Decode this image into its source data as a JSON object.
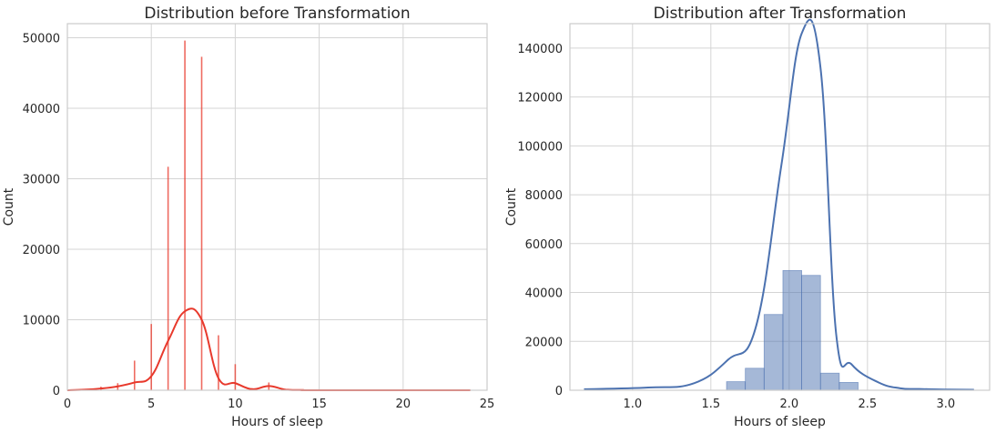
{
  "chart_data": [
    {
      "type": "histogram",
      "title": "Distribution before Transformation",
      "xlabel": "Hours of sleep",
      "ylabel": "Count",
      "xlim": [
        0,
        25
      ],
      "ylim": [
        0,
        52000
      ],
      "xticks": [
        0,
        5,
        10,
        15,
        20,
        25
      ],
      "yticks": [
        0,
        10000,
        20000,
        30000,
        40000,
        50000
      ],
      "grid": true,
      "color": "#e8392c",
      "bins": [
        {
          "x": 1,
          "count": 150
        },
        {
          "x": 2,
          "count": 500
        },
        {
          "x": 3,
          "count": 1000
        },
        {
          "x": 4,
          "count": 4200
        },
        {
          "x": 5,
          "count": 9400
        },
        {
          "x": 6,
          "count": 31700
        },
        {
          "x": 7,
          "count": 49600
        },
        {
          "x": 8,
          "count": 47300
        },
        {
          "x": 9,
          "count": 7800
        },
        {
          "x": 10,
          "count": 3700
        },
        {
          "x": 11,
          "count": 300
        },
        {
          "x": 12,
          "count": 1100
        },
        {
          "x": 13,
          "count": 150
        },
        {
          "x": 14,
          "count": 100
        },
        {
          "x": 16,
          "count": 80
        },
        {
          "x": 18,
          "count": 60
        },
        {
          "x": 20,
          "count": 60
        },
        {
          "x": 24,
          "count": 60
        }
      ],
      "kde": [
        [
          0,
          0
        ],
        [
          1,
          80
        ],
        [
          2,
          250
        ],
        [
          3,
          550
        ],
        [
          4,
          1100
        ],
        [
          5,
          2000
        ],
        [
          6,
          7000
        ],
        [
          7,
          11200
        ],
        [
          8,
          10000
        ],
        [
          9,
          1700
        ],
        [
          10,
          1000
        ],
        [
          11,
          150
        ],
        [
          12,
          600
        ],
        [
          13,
          80
        ],
        [
          14,
          30
        ],
        [
          15,
          0
        ],
        [
          24,
          0
        ]
      ]
    },
    {
      "type": "histogram",
      "title": "Distribution after Transformation",
      "xlabel": "Hours of sleep",
      "ylabel": "Count",
      "xlim": [
        0.6,
        3.28
      ],
      "ylim": [
        0,
        150000
      ],
      "xticks": [
        1.0,
        1.5,
        2.0,
        2.5,
        3.0
      ],
      "xtick_labels": [
        "1.0",
        "1.5",
        "2.0",
        "2.5",
        "3.0"
      ],
      "yticks": [
        0,
        20000,
        40000,
        60000,
        80000,
        100000,
        120000,
        140000
      ],
      "grid": true,
      "color": "#4c72b0",
      "bins": [
        {
          "x0": 1.6,
          "x1": 1.72,
          "count": 3500
        },
        {
          "x0": 1.72,
          "x1": 1.84,
          "count": 9000
        },
        {
          "x0": 1.84,
          "x1": 1.96,
          "count": 31000
        },
        {
          "x0": 1.96,
          "x1": 2.08,
          "count": 49000
        },
        {
          "x0": 2.08,
          "x1": 2.2,
          "count": 47000
        },
        {
          "x0": 2.2,
          "x1": 2.32,
          "count": 7000
        },
        {
          "x0": 2.32,
          "x1": 2.44,
          "count": 3200
        }
      ],
      "kde": [
        [
          0.69,
          400
        ],
        [
          1.1,
          1100
        ],
        [
          1.39,
          2800
        ],
        [
          1.61,
          12500
        ],
        [
          1.79,
          26500
        ],
        [
          1.95,
          92000
        ],
        [
          2.08,
          146000
        ],
        [
          2.2,
          132000
        ],
        [
          2.3,
          23000
        ],
        [
          2.4,
          10500
        ],
        [
          2.57,
          3200
        ],
        [
          2.71,
          800
        ],
        [
          2.83,
          500
        ],
        [
          3.0,
          300
        ],
        [
          3.18,
          200
        ]
      ]
    }
  ]
}
